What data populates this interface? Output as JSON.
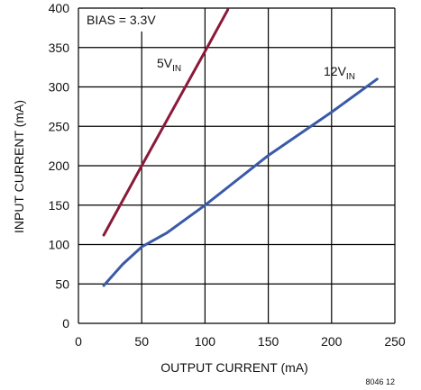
{
  "chart_data": {
    "type": "line",
    "xlabel": "OUTPUT CURRENT (mA)",
    "ylabel": "INPUT CURRENT (mA)",
    "xlim": [
      0,
      250
    ],
    "ylim": [
      0,
      400
    ],
    "x_ticks": [
      0,
      50,
      100,
      150,
      200,
      250
    ],
    "y_ticks": [
      0,
      50,
      100,
      150,
      200,
      250,
      300,
      350,
      400
    ],
    "grid": true,
    "annotation": "BIAS = 3.3V",
    "figure_number": "8046 12",
    "series": [
      {
        "name_main": "5V",
        "name_sub": "IN",
        "color": "#8b1a3a",
        "x": [
          20,
          50,
          100,
          118
        ],
        "y": [
          112,
          200,
          345,
          398
        ]
      },
      {
        "name_main": "12V",
        "name_sub": "IN",
        "color": "#3a5aa8",
        "x": [
          20,
          35,
          50,
          70,
          100,
          150,
          200,
          236
        ],
        "y": [
          48,
          75,
          97,
          115,
          150,
          213,
          268,
          310
        ]
      }
    ]
  }
}
